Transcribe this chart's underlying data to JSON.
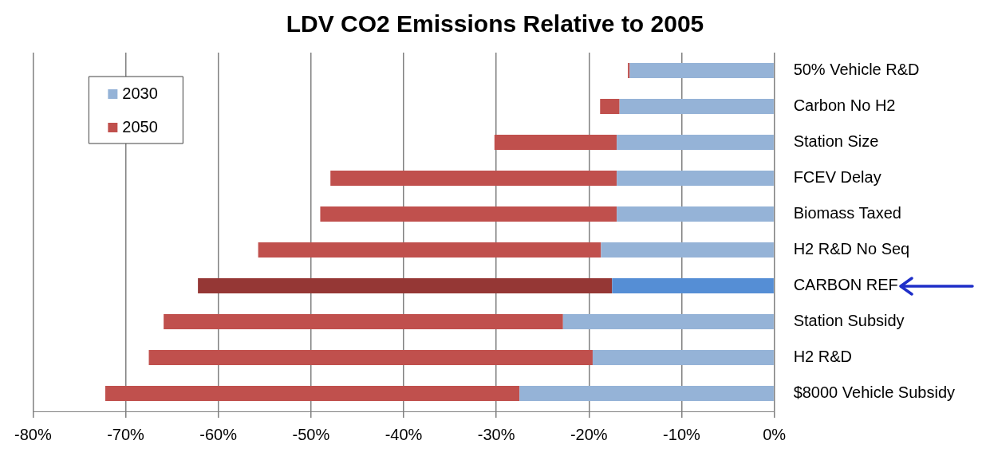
{
  "chart_data": {
    "type": "bar",
    "orientation": "horizontal",
    "stacked": true,
    "title": "LDV CO2 Emissions Relative to 2005",
    "categories": [
      "50% Vehicle R&D",
      "Carbon No H2",
      "Station Size",
      "FCEV Delay",
      "Biomass Taxed",
      "H2 R&D No Seq",
      "CARBON REF",
      "Station Subsidy",
      "H2 R&D",
      "$8000 Vehicle Subsidy"
    ],
    "series": [
      {
        "name": "2030",
        "color": "#95b3d7",
        "colors": [
          "#95b3d7",
          "#95b3d7",
          "#95b3d7",
          "#95b3d7",
          "#95b3d7",
          "#95b3d7",
          "#558ed5",
          "#95b3d7",
          "#95b3d7",
          "#95b3d7"
        ],
        "values": [
          -15.6,
          -16.7,
          -17.0,
          -17.0,
          -17.0,
          -18.7,
          -17.5,
          -22.8,
          -19.6,
          -27.5
        ]
      },
      {
        "name": "2050",
        "color": "#c0504d",
        "colors": [
          "#c0504d",
          "#c0504d",
          "#c0504d",
          "#c0504d",
          "#c0504d",
          "#c0504d",
          "#953735",
          "#c0504d",
          "#c0504d",
          "#c0504d"
        ],
        "values": [
          -0.2,
          -2.1,
          -13.2,
          -30.9,
          -32.0,
          -37.0,
          -44.7,
          -43.1,
          -47.9,
          -44.7
        ]
      }
    ],
    "xlim": [
      -80,
      0
    ],
    "xticks": [
      {
        "value": -80,
        "label": "-80%"
      },
      {
        "value": -70,
        "label": "-70%"
      },
      {
        "value": -60,
        "label": "-60%"
      },
      {
        "value": -50,
        "label": "-50%"
      },
      {
        "value": -40,
        "label": "-40%"
      },
      {
        "value": -30,
        "label": "-30%"
      },
      {
        "value": -20,
        "label": "-20%"
      },
      {
        "value": -10,
        "label": "-10%"
      },
      {
        "value": 0,
        "label": "0%"
      }
    ],
    "grid": "x",
    "legend": "top left"
  }
}
